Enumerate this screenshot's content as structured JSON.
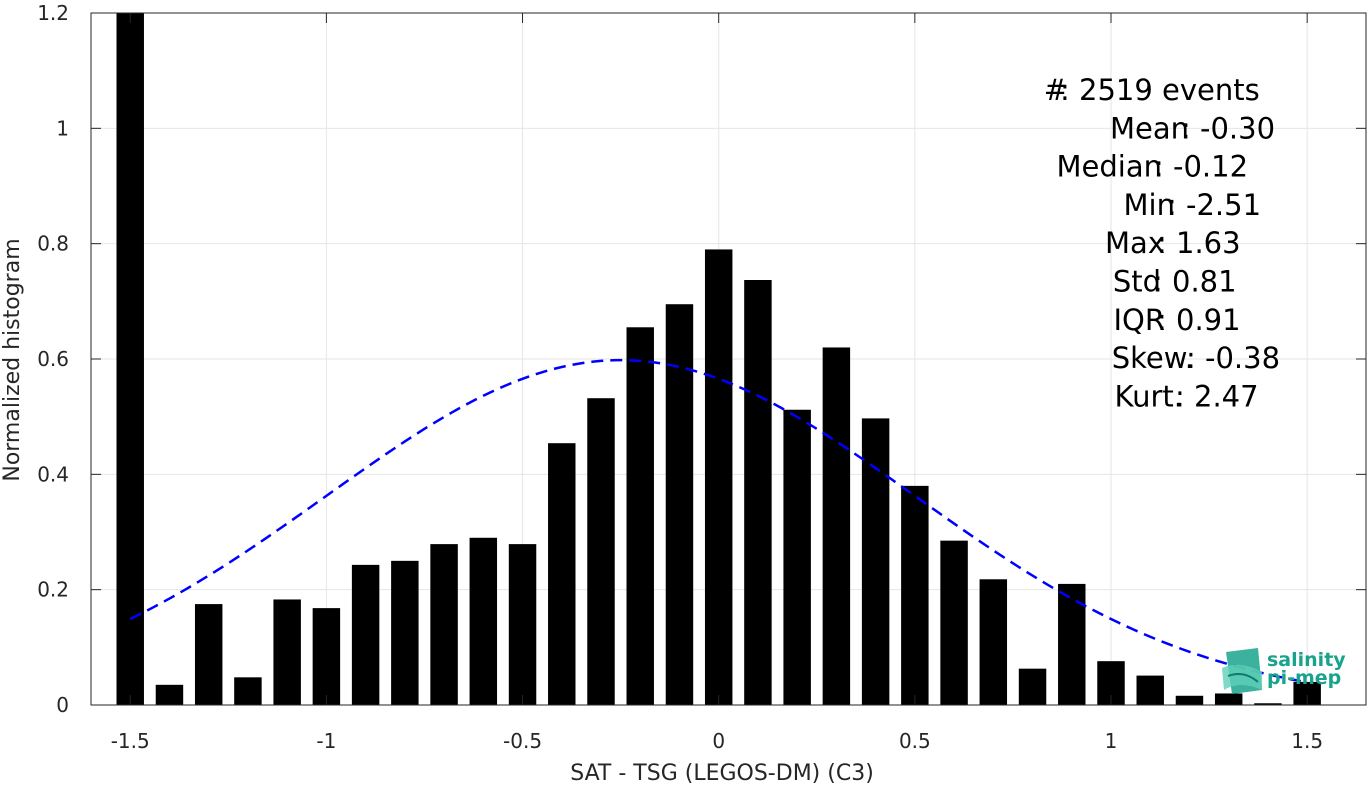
{
  "chart_data": {
    "type": "bar",
    "xlabel": "SAT - TSG (LEGOS-DM) (C3)",
    "ylabel": "Normalized histogram",
    "xlim": [
      -1.6,
      1.65
    ],
    "ylim": [
      0,
      1.2
    ],
    "x_ticks": [
      "-1.5",
      "-1",
      "-0.5",
      "0",
      "0.5",
      "1",
      "1.5"
    ],
    "x_tick_values": [
      -1.5,
      -1,
      -0.5,
      0,
      0.5,
      1,
      1.5
    ],
    "y_ticks": [
      "0",
      "0.2",
      "0.4",
      "0.6",
      "0.8",
      "1",
      "1.2"
    ],
    "y_tick_values": [
      0,
      0.2,
      0.4,
      0.6,
      0.8,
      1,
      1.2
    ],
    "grid": true,
    "bar_width": 0.07,
    "bar_color": "#000000",
    "x": [
      -1.5,
      -1.4,
      -1.3,
      -1.2,
      -1.1,
      -1.0,
      -0.9,
      -0.8,
      -0.7,
      -0.6,
      -0.5,
      -0.4,
      -0.3,
      -0.2,
      -0.1,
      0.0,
      0.1,
      0.2,
      0.3,
      0.4,
      0.5,
      0.6,
      0.7,
      0.8,
      0.9,
      1.0,
      1.1,
      1.2,
      1.3,
      1.4,
      1.5
    ],
    "values": [
      1.2,
      0.035,
      0.175,
      0.048,
      0.183,
      0.168,
      0.243,
      0.25,
      0.279,
      0.29,
      0.279,
      0.454,
      0.532,
      0.655,
      0.695,
      0.79,
      0.737,
      0.512,
      0.62,
      0.497,
      0.38,
      0.285,
      0.218,
      0.063,
      0.21,
      0.076,
      0.051,
      0.016,
      0.02,
      0.003,
      0.04
    ],
    "fit_curve": {
      "style": "dashed",
      "color": "#0000ff",
      "mean": -0.25,
      "std": 0.75,
      "peak": 0.598,
      "x_range": [
        -1.5,
        1.5
      ]
    },
    "stats": [
      {
        "label": "#  ",
        "value": "2519 events"
      },
      {
        "label": "Mean",
        "value": "-0.30"
      },
      {
        "label": "Median",
        "value": "-0.12"
      },
      {
        "label": "Min",
        "value": "-2.51"
      },
      {
        "label": "Max",
        "value": "1.63"
      },
      {
        "label": "Std",
        "value": "0.81"
      },
      {
        "label": "IQR",
        "value": "0.91"
      },
      {
        "label": "Skew.",
        "value": "-0.38"
      },
      {
        "label": "Kurt.",
        "value": "2.47"
      }
    ]
  },
  "logo": {
    "line1": "salinity",
    "line2": "pi-mep",
    "icon": "salinity-wave-icon",
    "color": "#1aa38c"
  }
}
